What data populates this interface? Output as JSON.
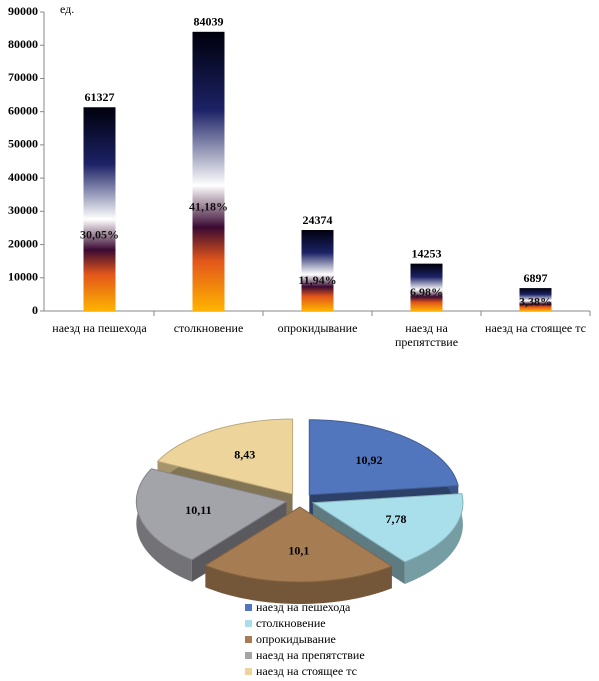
{
  "chart_data": [
    {
      "type": "bar",
      "unit": "ед.",
      "categories": [
        "наезд на пешехода",
        "столкновение",
        "опрокидывание",
        "наезд на препятствие",
        "наезд на стоящее тс"
      ],
      "values": [
        61327,
        84039,
        24374,
        14253,
        6897
      ],
      "share_labels": [
        {
          "value": 30.05,
          "label": "30,05%"
        },
        {
          "value": 41.18,
          "label": "41,18%"
        },
        {
          "value": 11.94,
          "label": "11,94%"
        },
        {
          "value": 6.98,
          "label": "6,98%"
        },
        {
          "value": 3.38,
          "label": "3,38%"
        }
      ],
      "gradient": [
        "#ffb400",
        "#e2561a",
        "#3a0a32",
        "#ffffff",
        "#1c2266",
        "#00000c"
      ],
      "ylim": [
        0,
        90000
      ],
      "yticks": [
        0,
        10000,
        20000,
        30000,
        40000,
        50000,
        60000,
        70000,
        80000,
        90000
      ]
    },
    {
      "type": "pie",
      "categories": [
        "наезд на пешехода",
        "столкновение",
        "опрокидывание",
        "наезд на препятствие",
        "наезд на стоящее тс"
      ],
      "values": [
        10.92,
        7.78,
        10.1,
        10.11,
        8.43
      ],
      "value_labels": [
        "10,92",
        "7,78",
        "10,1",
        "10,11",
        "8,43"
      ],
      "colors": [
        "#5276bd",
        "#a9dfea",
        "#a67c52",
        "#a3a3aa",
        "#ecd49a"
      ],
      "legend": "bottom"
    }
  ]
}
